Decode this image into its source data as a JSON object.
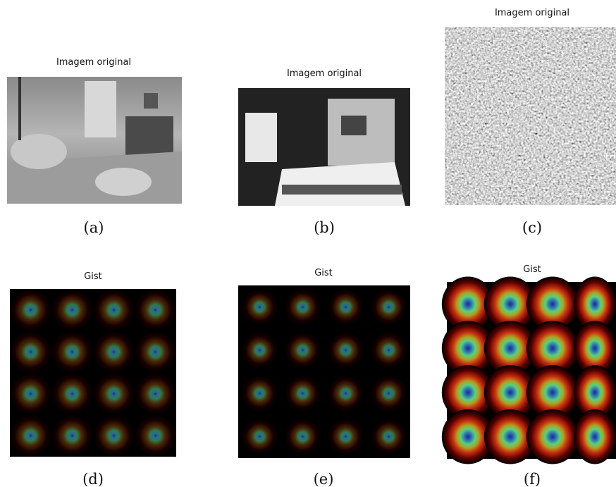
{
  "panels": [
    {
      "title": "Imagem original",
      "caption": "(a)"
    },
    {
      "title": "Imagem original",
      "caption": "(b)"
    },
    {
      "title": "Imagem original",
      "caption": "(c)"
    },
    {
      "title": "Gist",
      "caption": "(d)"
    },
    {
      "title": "Gist",
      "caption": "(e)"
    },
    {
      "title": "Gist",
      "caption": "(f)"
    }
  ]
}
